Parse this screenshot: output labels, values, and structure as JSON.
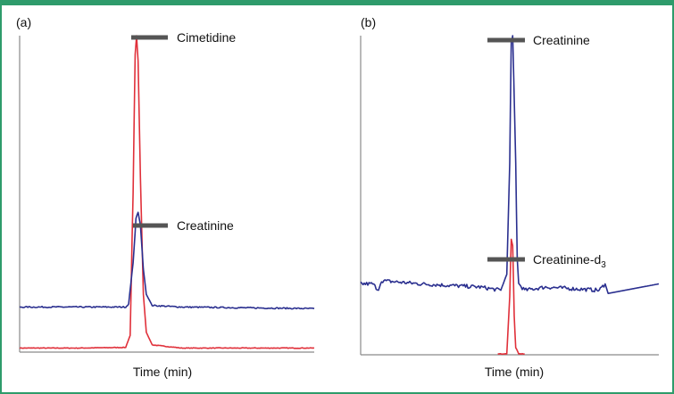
{
  "colors": {
    "frame": "#2e9b6b",
    "red_trace": "#e0303a",
    "blue_trace": "#2a2f8f",
    "axis": "#7a7a7a",
    "leader": "#555555"
  },
  "chart_data": [
    {
      "type": "line",
      "panel_label": "(a)",
      "xlabel": "Time (min)",
      "ylabel": "",
      "xlim": [
        0,
        1
      ],
      "ylim": [
        0,
        1
      ],
      "grid": false,
      "series": [
        {
          "name": "Cimetidine",
          "color": "#e0303a",
          "baseline": 0.0,
          "points": [
            [
              0,
              0.01
            ],
            [
              0.2,
              0.01
            ],
            [
              0.36,
              0.012
            ],
            [
              0.375,
              0.05
            ],
            [
              0.385,
              0.5
            ],
            [
              0.392,
              0.94
            ],
            [
              0.397,
              1.0
            ],
            [
              0.402,
              0.92
            ],
            [
              0.41,
              0.55
            ],
            [
              0.42,
              0.18
            ],
            [
              0.43,
              0.06
            ],
            [
              0.45,
              0.02
            ],
            [
              0.55,
              0.01
            ],
            [
              1,
              0.01
            ]
          ]
        },
        {
          "name": "Creatinine",
          "color": "#2a2f8f",
          "baseline": 0.14,
          "points": [
            [
              0,
              0.14
            ],
            [
              0.36,
              0.14
            ],
            [
              0.37,
              0.15
            ],
            [
              0.385,
              0.28
            ],
            [
              0.395,
              0.42
            ],
            [
              0.402,
              0.44
            ],
            [
              0.41,
              0.4
            ],
            [
              0.42,
              0.26
            ],
            [
              0.43,
              0.18
            ],
            [
              0.45,
              0.145
            ],
            [
              0.55,
              0.14
            ],
            [
              1,
              0.135
            ]
          ]
        }
      ],
      "annotations": [
        {
          "text": "Cimetidine"
        },
        {
          "text": "Creatinine"
        }
      ]
    },
    {
      "type": "line",
      "panel_label": "(b)",
      "xlabel": "Time (min)",
      "ylabel": "",
      "xlim": [
        0,
        1
      ],
      "ylim": [
        0,
        1
      ],
      "grid": false,
      "series": [
        {
          "name": "Creatinine",
          "color": "#2a2f8f",
          "baseline": 0.22,
          "points": [
            [
              0,
              0.22
            ],
            [
              0.04,
              0.22
            ],
            [
              0.06,
              0.2
            ],
            [
              0.07,
              0.23
            ],
            [
              0.2,
              0.22
            ],
            [
              0.4,
              0.21
            ],
            [
              0.47,
              0.2
            ],
            [
              0.49,
              0.25
            ],
            [
              0.5,
              0.6
            ],
            [
              0.505,
              0.98
            ],
            [
              0.51,
              1.0
            ],
            [
              0.52,
              0.6
            ],
            [
              0.525,
              0.3
            ],
            [
              0.53,
              0.22
            ],
            [
              0.55,
              0.2
            ],
            [
              0.62,
              0.21
            ],
            [
              0.8,
              0.2
            ],
            [
              0.82,
              0.22
            ],
            [
              0.83,
              0.19
            ],
            [
              1,
              0.22
            ]
          ]
        },
        {
          "name": "Creatinine-d3",
          "color": "#e0303a",
          "baseline": 0.0,
          "points": [
            [
              0.46,
              0.0
            ],
            [
              0.49,
              0.0
            ],
            [
              0.5,
              0.18
            ],
            [
              0.505,
              0.36
            ],
            [
              0.51,
              0.34
            ],
            [
              0.515,
              0.12
            ],
            [
              0.52,
              0.02
            ],
            [
              0.53,
              0.0
            ],
            [
              0.55,
              0.0
            ]
          ]
        }
      ],
      "annotations": [
        {
          "text": "Creatinine"
        },
        {
          "text": "Creatinine-d",
          "subscript": "3"
        }
      ]
    }
  ]
}
